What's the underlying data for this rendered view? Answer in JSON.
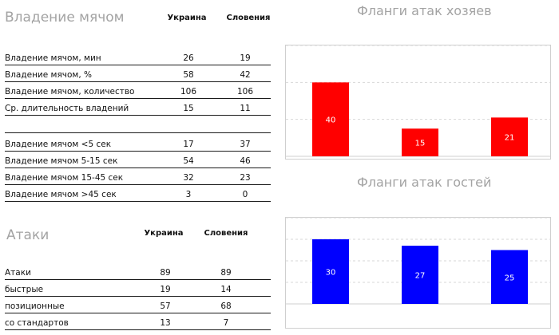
{
  "possession": {
    "title": "Владение мячом",
    "team1": "Украина",
    "team2": "Словения",
    "rows": [
      {
        "label": "Владение мячом, мин",
        "v1": "26",
        "v2": "19"
      },
      {
        "label": "Владение мячом, %",
        "v1": "58",
        "v2": "42"
      },
      {
        "label": "Владение мячом, количество",
        "v1": "106",
        "v2": "106"
      },
      {
        "label": "Ср. длительность владений",
        "v1": "15",
        "v2": "11"
      },
      {
        "label": "Владение мячом <5 сек",
        "v1": "17",
        "v2": "37"
      },
      {
        "label": "Владение мячом 5-15 сек",
        "v1": "54",
        "v2": "46"
      },
      {
        "label": "Владение мячом 15-45 сек",
        "v1": "32",
        "v2": "23"
      },
      {
        "label": "Владение мячом >45 сек",
        "v1": "3",
        "v2": "0"
      }
    ]
  },
  "attacks": {
    "title": "Атаки",
    "team1": "Украина",
    "team2": "Словения",
    "rows": [
      {
        "label": "Атаки",
        "v1": "89",
        "v2": "89"
      },
      {
        "label": "быстрые",
        "v1": "19",
        "v2": "14"
      },
      {
        "label": "позиционные",
        "v1": "57",
        "v2": "68"
      },
      {
        "label": "со стандартов",
        "v1": "13",
        "v2": "7"
      }
    ]
  },
  "colors": {
    "home": "#ff0000",
    "away": "#0000ff",
    "title": "#a3a3a3"
  },
  "chart_data": [
    {
      "type": "bar",
      "title": "Фланги атак хозяев",
      "categories": [
        "",
        "",
        ""
      ],
      "values": [
        40,
        15,
        21
      ],
      "ylim": [
        0,
        60
      ],
      "grid": true,
      "color": "#ff0000"
    },
    {
      "type": "bar",
      "title": "Фланги атак гостей",
      "categories": [
        "",
        "",
        ""
      ],
      "values": [
        30,
        27,
        25
      ],
      "ylim": [
        0,
        40
      ],
      "grid": true,
      "color": "#0000ff"
    }
  ]
}
